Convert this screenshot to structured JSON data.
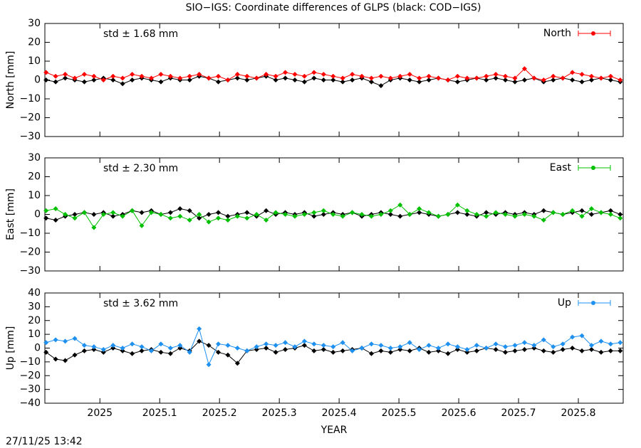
{
  "title": "SIO−IGS: Coordinate differences of GLPS (black: COD−IGS)",
  "timestamp": "27/11/25 13:42",
  "chart_data": [
    {
      "type": "line",
      "ylabel": "North [mm]",
      "annotation": "std ± 1.68 mm",
      "legend": "upper right",
      "x": [
        2024.91,
        2024.926,
        2024.942,
        2024.958,
        2024.974,
        2024.99,
        2025.006,
        2025.022,
        2025.038,
        2025.054,
        2025.07,
        2025.086,
        2025.102,
        2025.118,
        2025.134,
        2025.15,
        2025.166,
        2025.182,
        2025.198,
        2025.214,
        2025.23,
        2025.246,
        2025.262,
        2025.278,
        2025.294,
        2025.31,
        2025.326,
        2025.342,
        2025.358,
        2025.374,
        2025.39,
        2025.406,
        2025.422,
        2025.438,
        2025.454,
        2025.47,
        2025.486,
        2025.502,
        2025.518,
        2025.534,
        2025.55,
        2025.566,
        2025.582,
        2025.598,
        2025.614,
        2025.63,
        2025.646,
        2025.662,
        2025.678,
        2025.694,
        2025.71,
        2025.726,
        2025.742,
        2025.758,
        2025.774,
        2025.79,
        2025.806,
        2025.822,
        2025.838,
        2025.854,
        2025.87
      ],
      "xlim": [
        2024.908,
        2025.875
      ],
      "ylim": [
        -30,
        30
      ],
      "yticks": [
        {
          "value": -30,
          "label": "−30"
        },
        {
          "value": -20,
          "label": "−20"
        },
        {
          "value": -10,
          "label": "−10"
        },
        0,
        10,
        20,
        30
      ],
      "series": [
        {
          "color": "#000000",
          "values": [
            0,
            -1,
            1,
            0,
            -1,
            0,
            1,
            0,
            -2,
            0,
            1,
            0,
            -1,
            1,
            0,
            0,
            2,
            1,
            -1,
            0,
            1,
            0,
            1,
            2,
            0,
            1,
            0,
            -1,
            1,
            0,
            0,
            -1,
            0,
            1,
            -1,
            -3,
            0,
            1,
            0,
            -1,
            0,
            1,
            0,
            -1,
            0,
            1,
            0,
            1,
            0,
            -1,
            0,
            1,
            -1,
            0,
            1,
            0,
            -1,
            0,
            1,
            0,
            -1
          ]
        },
        {
          "name": "North",
          "color": "#ff0000",
          "values": [
            4,
            2,
            3,
            1,
            3,
            2,
            0,
            2,
            1,
            3,
            2,
            1,
            3,
            2,
            1,
            2,
            3,
            1,
            2,
            0,
            3,
            2,
            1,
            3,
            2,
            4,
            3,
            2,
            4,
            3,
            2,
            1,
            3,
            2,
            1,
            2,
            1,
            2,
            3,
            1,
            2,
            1,
            0,
            2,
            1,
            1,
            2,
            3,
            2,
            1,
            6,
            1,
            0,
            2,
            1,
            4,
            3,
            2,
            1,
            2,
            0
          ]
        }
      ]
    },
    {
      "type": "line",
      "ylabel": "East [mm]",
      "annotation": "std ± 2.30 mm",
      "legend": "upper right",
      "x": [
        2024.91,
        2024.926,
        2024.942,
        2024.958,
        2024.974,
        2024.99,
        2025.006,
        2025.022,
        2025.038,
        2025.054,
        2025.07,
        2025.086,
        2025.102,
        2025.118,
        2025.134,
        2025.15,
        2025.166,
        2025.182,
        2025.198,
        2025.214,
        2025.23,
        2025.246,
        2025.262,
        2025.278,
        2025.294,
        2025.31,
        2025.326,
        2025.342,
        2025.358,
        2025.374,
        2025.39,
        2025.406,
        2025.422,
        2025.438,
        2025.454,
        2025.47,
        2025.486,
        2025.502,
        2025.518,
        2025.534,
        2025.55,
        2025.566,
        2025.582,
        2025.598,
        2025.614,
        2025.63,
        2025.646,
        2025.662,
        2025.678,
        2025.694,
        2025.71,
        2025.726,
        2025.742,
        2025.758,
        2025.774,
        2025.79,
        2025.806,
        2025.822,
        2025.838,
        2025.854,
        2025.87
      ],
      "xlim": [
        2024.908,
        2025.875
      ],
      "ylim": [
        -30,
        30
      ],
      "yticks": [
        {
          "value": -30,
          "label": "−30"
        },
        {
          "value": -20,
          "label": "−20"
        },
        {
          "value": -10,
          "label": "−10"
        },
        0,
        10,
        20,
        30
      ],
      "series": [
        {
          "color": "#000000",
          "values": [
            -2,
            -3,
            -1,
            0,
            1,
            0,
            1,
            -1,
            0,
            2,
            1,
            2,
            0,
            1,
            3,
            2,
            -2,
            0,
            1,
            -1,
            0,
            1,
            -1,
            2,
            0,
            1,
            0,
            1,
            -1,
            0,
            1,
            0,
            1,
            -1,
            0,
            1,
            0,
            -1,
            0,
            1,
            0,
            -1,
            0,
            1,
            0,
            -1,
            1,
            0,
            1,
            0,
            1,
            0,
            2,
            1,
            0,
            1,
            2,
            0,
            1,
            2,
            0
          ]
        },
        {
          "name": "East",
          "color": "#00c000",
          "values": [
            2,
            3,
            0,
            -2,
            1,
            -7,
            0,
            1,
            -1,
            2,
            -6,
            1,
            0,
            -2,
            -1,
            -3,
            0,
            -4,
            -2,
            -3,
            -1,
            -2,
            0,
            -3,
            1,
            0,
            -1,
            0,
            1,
            2,
            0,
            -1,
            1,
            0,
            -1,
            0,
            2,
            5,
            0,
            3,
            1,
            -1,
            0,
            5,
            2,
            0,
            -1,
            1,
            0,
            -1,
            0,
            -1,
            -3,
            1,
            0,
            2,
            -1,
            3,
            1,
            0,
            -2
          ]
        }
      ]
    },
    {
      "type": "line",
      "ylabel": "Up [mm]",
      "annotation": "std ± 3.62 mm",
      "legend": "upper right",
      "xlabel": "YEAR",
      "x": [
        2024.91,
        2024.926,
        2024.942,
        2024.958,
        2024.974,
        2024.99,
        2025.006,
        2025.022,
        2025.038,
        2025.054,
        2025.07,
        2025.086,
        2025.102,
        2025.118,
        2025.134,
        2025.15,
        2025.166,
        2025.182,
        2025.198,
        2025.214,
        2025.23,
        2025.246,
        2025.262,
        2025.278,
        2025.294,
        2025.31,
        2025.326,
        2025.342,
        2025.358,
        2025.374,
        2025.39,
        2025.406,
        2025.422,
        2025.438,
        2025.454,
        2025.47,
        2025.486,
        2025.502,
        2025.518,
        2025.534,
        2025.55,
        2025.566,
        2025.582,
        2025.598,
        2025.614,
        2025.63,
        2025.646,
        2025.662,
        2025.678,
        2025.694,
        2025.71,
        2025.726,
        2025.742,
        2025.758,
        2025.774,
        2025.79,
        2025.806,
        2025.822,
        2025.838,
        2025.854,
        2025.87
      ],
      "xlim": [
        2024.908,
        2025.875
      ],
      "ylim": [
        -40,
        40
      ],
      "xticks": [
        2025,
        2025.1,
        2025.2,
        2025.3,
        2025.4,
        2025.5,
        2025.6,
        2025.7,
        2025.8
      ],
      "yticks": [
        {
          "value": -40,
          "label": "−40"
        },
        {
          "value": -30,
          "label": "−30"
        },
        {
          "value": -20,
          "label": "−20"
        },
        {
          "value": -10,
          "label": "−10"
        },
        0,
        10,
        20,
        30,
        40
      ],
      "series": [
        {
          "color": "#000000",
          "values": [
            -3,
            -8,
            -9,
            -5,
            -2,
            -1,
            -3,
            0,
            -2,
            -4,
            -2,
            -1,
            -3,
            -4,
            0,
            -2,
            5,
            2,
            -3,
            -5,
            -11,
            -2,
            -1,
            0,
            -3,
            -1,
            0,
            2,
            -2,
            -1,
            -3,
            -2,
            -1,
            0,
            -4,
            -2,
            -3,
            -1,
            -2,
            0,
            -3,
            -2,
            -4,
            -1,
            -3,
            -2,
            0,
            -1,
            -3,
            -2,
            -1,
            0,
            -2,
            -3,
            -1,
            0,
            -2,
            -1,
            -3,
            -2,
            -2
          ]
        },
        {
          "name": "Up",
          "color": "#1e90f0",
          "values": [
            4,
            6,
            5,
            7,
            2,
            1,
            -1,
            2,
            0,
            3,
            1,
            -2,
            3,
            0,
            2,
            -3,
            14,
            -12,
            3,
            2,
            0,
            -2,
            1,
            3,
            2,
            4,
            1,
            5,
            3,
            2,
            1,
            4,
            -2,
            0,
            3,
            2,
            0,
            1,
            4,
            -1,
            2,
            0,
            3,
            1,
            -1,
            2,
            0,
            3,
            1,
            2,
            4,
            2,
            6,
            1,
            3,
            8,
            9,
            2,
            5,
            3,
            4
          ]
        }
      ]
    }
  ]
}
